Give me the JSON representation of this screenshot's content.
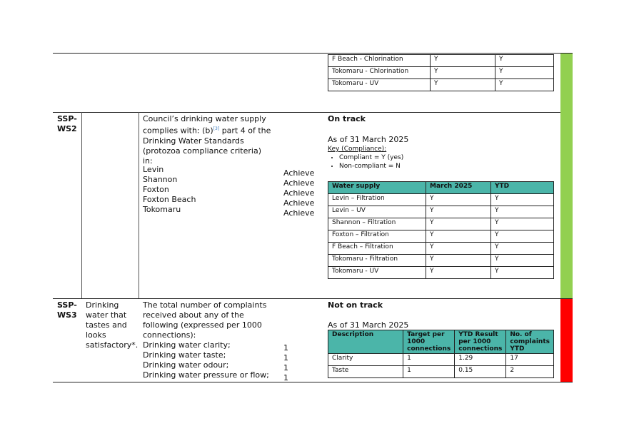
{
  "top_table": {
    "rows": [
      {
        "supply": "F Beach - Chlorination",
        "month": "Y",
        "ytd": "Y"
      },
      {
        "supply": "Tokomaru - Chlorination",
        "month": "Y",
        "ytd": "Y"
      },
      {
        "supply": "Tokomaru - UV",
        "month": "Y",
        "ytd": "Y"
      }
    ]
  },
  "ws2": {
    "code": "SSP-\nWS2",
    "measure_intro": "Council’s drinking water supply complies with: (b)",
    "footnote": "[3]",
    "measure_rest": " part 4 of the Drinking Water Standards (protozoa compliance criteria) in:",
    "locations": [
      "Levin",
      "Shannon",
      "Foxton",
      "Foxton Beach",
      "Tokomaru"
    ],
    "targets": [
      "Achieve",
      "Achieve",
      "Achieve",
      "Achieve",
      "Achieve"
    ],
    "status": "On track",
    "as_of": "As of 31 March 2025",
    "key_title": "Key (Compliance):",
    "key_items": [
      "Compliant = Y (yes)",
      "Non-compliant = N"
    ],
    "table": {
      "headers": [
        "Water supply",
        "March 2025",
        "YTD"
      ],
      "rows": [
        [
          "Levin – Filtration",
          "Y",
          "Y"
        ],
        [
          "Levin – UV",
          "Y",
          "Y"
        ],
        [
          "Shannon – Filtration",
          "Y",
          "Y"
        ],
        [
          "Foxton – Filtration",
          "Y",
          "Y"
        ],
        [
          "F Beach – Filtration",
          "Y",
          "Y"
        ],
        [
          "Tokomaru - Filtration",
          "Y",
          "Y"
        ],
        [
          "Tokomaru - UV",
          "Y",
          "Y"
        ]
      ]
    },
    "status_color": "#92d050"
  },
  "ws3": {
    "code": "SSP-\nWS3",
    "level": "Drinking water that tastes and looks satisfactory*.",
    "measure": "The total number of complaints received about any of the following (expressed per 1000 connections):",
    "items": [
      "Drinking water clarity;",
      "Drinking water taste;",
      "Drinking water odour;",
      "Drinking water pressure or flow;"
    ],
    "targets": [
      "1",
      "1",
      "1",
      "1"
    ],
    "status": "Not on track",
    "as_of": "As of 31 March 2025",
    "table": {
      "headers": [
        "Description",
        "Target per 1000 connections",
        "YTD Result per 1000 connections",
        "No. of complaints YTD"
      ],
      "rows": [
        [
          "Clarity",
          "1",
          "1.29",
          "17"
        ],
        [
          "Taste",
          "1",
          "0.15",
          "2"
        ]
      ]
    },
    "status_color": "#ff0000"
  },
  "colors": {
    "header_teal": "#4bb5a9",
    "green": "#92d050",
    "red": "#ff0000"
  }
}
